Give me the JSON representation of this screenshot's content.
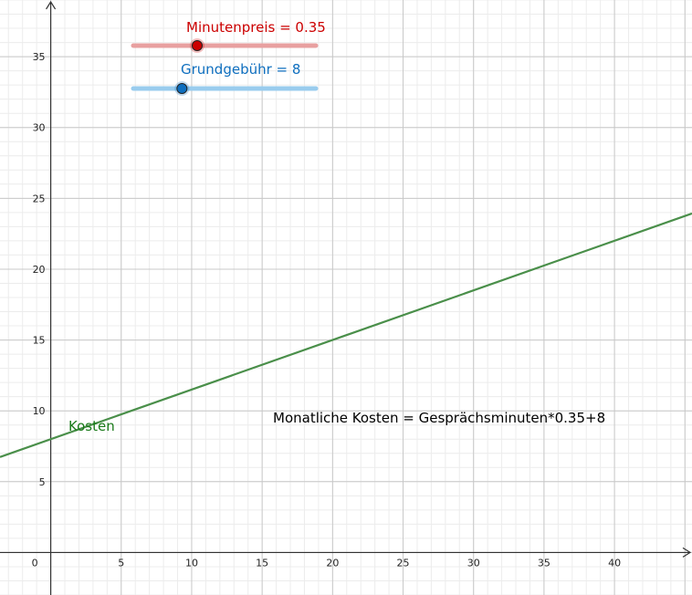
{
  "sliders": [
    {
      "name": "Minutenpreis",
      "label": "Minutenpreis = 0.35",
      "value": 0.35,
      "min": 0,
      "max": 1,
      "color": "#cc0000",
      "track_color": "#e8a0a0"
    },
    {
      "name": "Grundgebühr",
      "label": "Grundgebühr = 8",
      "value": 8,
      "min": 0,
      "max": 30,
      "color": "#0f6fbf",
      "track_color": "#99ccee"
    }
  ],
  "formula": "Monatliche Kosten = Gesprächsminuten*0.35+8",
  "curve_label": "Kosten",
  "curve_color": "#4a8f4a",
  "chart_data": {
    "type": "line",
    "series": [
      {
        "name": "Kosten",
        "x": [
          -3.6,
          45.5
        ],
        "y": [
          6.74,
          23.93
        ]
      }
    ],
    "xlim": [
      -3.6,
      45.5
    ],
    "ylim": [
      -3.0,
      39.0
    ],
    "xticks": [
      0,
      5,
      10,
      15,
      20,
      25,
      30,
      35,
      40
    ],
    "yticks": [
      5,
      10,
      15,
      20,
      25,
      30,
      35
    ],
    "grid": true
  }
}
